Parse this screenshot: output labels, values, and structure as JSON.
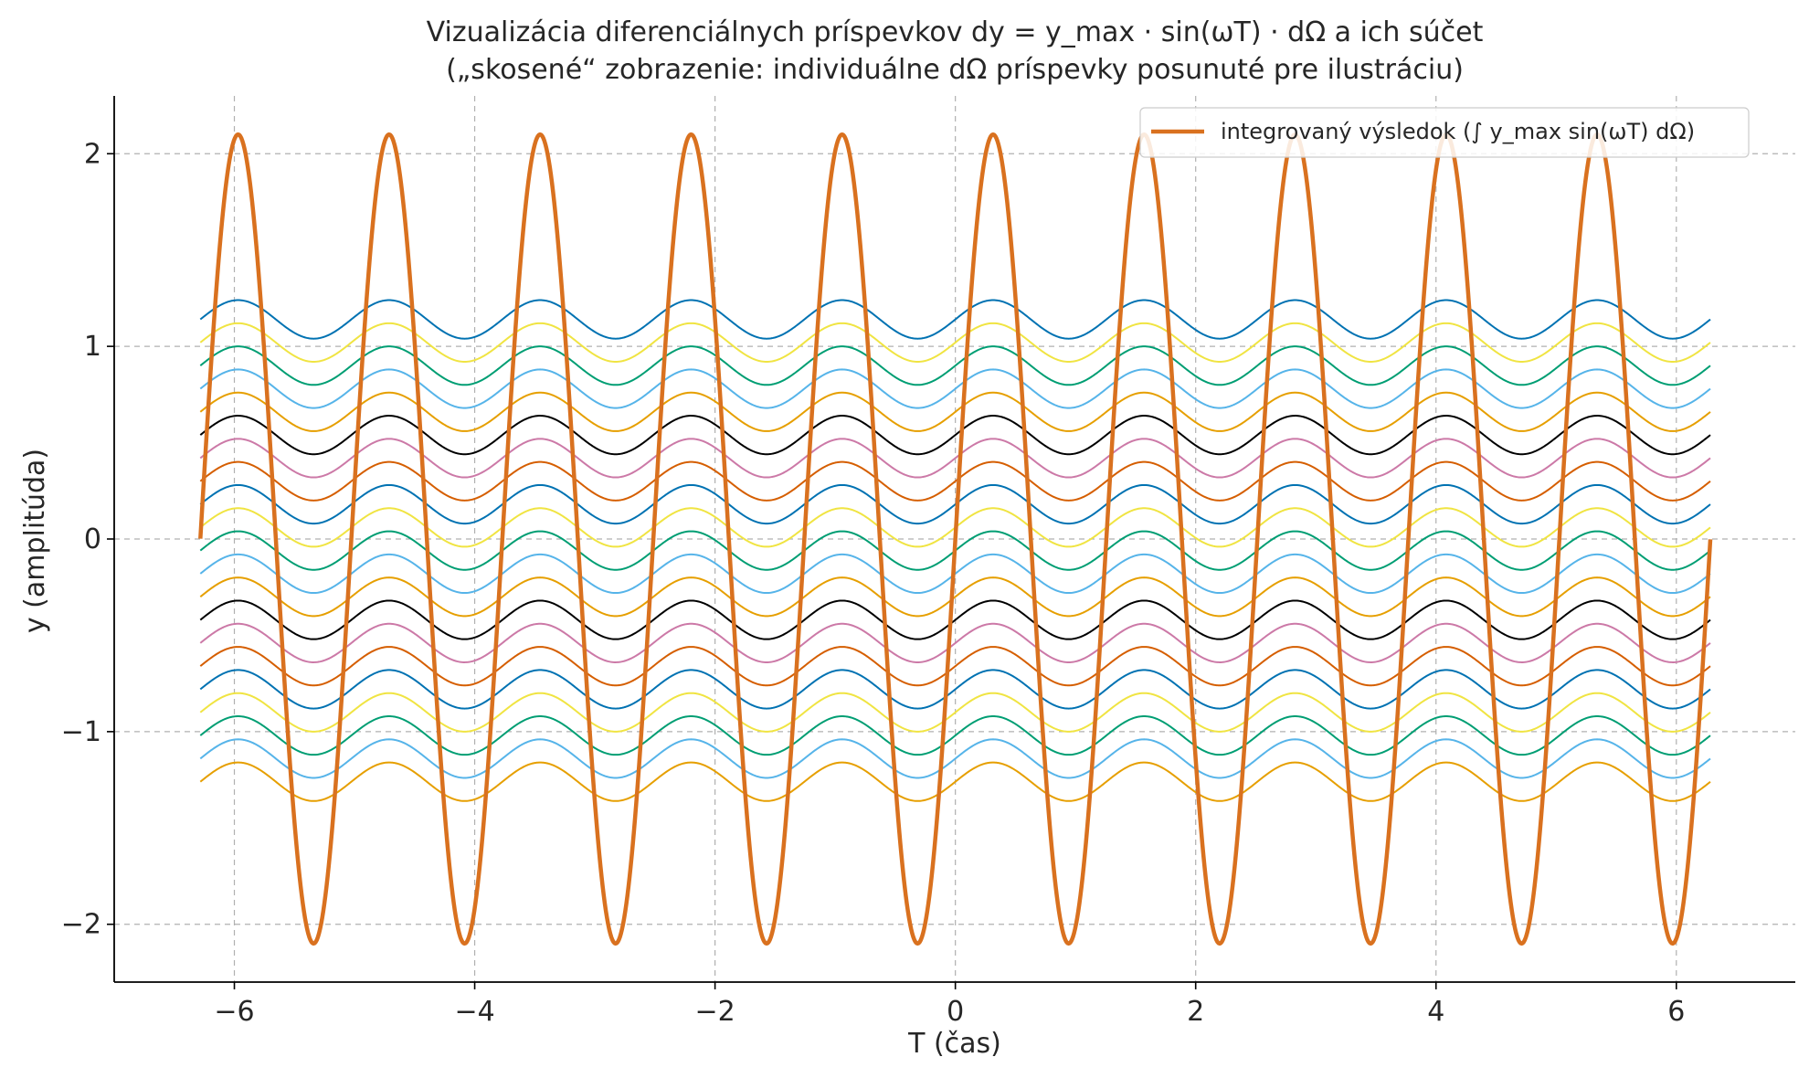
{
  "chart_data": {
    "type": "line",
    "title": [
      "Vizualizácia diferenciálnych príspevkov dy = y_max · sin(ωT) · dΩ a ich súčet",
      "(„skosené“ zobrazenie: individuálne dΩ príspevky posunuté pre ilustráciu)"
    ],
    "xlabel": "T (čas)",
    "ylabel": "y (amplitúda)",
    "xlim": [
      -7,
      6.99
    ],
    "ylim": [
      -2.3,
      2.3
    ],
    "xticks": [
      -6,
      -4,
      -2,
      0,
      2,
      4,
      6
    ],
    "xtick_labels": [
      "−6",
      "−4",
      "−2",
      "0",
      "2",
      "4",
      "6"
    ],
    "yticks": [
      -2,
      -1,
      0,
      1,
      2
    ],
    "ytick_labels": [
      "−2",
      "−1",
      "0",
      "1",
      "2"
    ],
    "grid": true,
    "legend_position": "top-right",
    "legend": [
      "integrovaný výsledok (∫ y_max sin(ωT) dΩ)"
    ],
    "t_range": [
      -6.283,
      6.283
    ],
    "main_series": {
      "name": "integrovaný výsledok (∫ y_max sin(ωT) dΩ)",
      "amplitude": 2.1,
      "omega": 5,
      "color": "#d9711f"
    },
    "contributions": {
      "count": 21,
      "amplitude": 0.1,
      "omega": 5,
      "offset_start": 1.14,
      "offset_step": -0.12,
      "colors": [
        "#0072b2",
        "#f0e442",
        "#009e73",
        "#56b4e9",
        "#e69f00",
        "#000000",
        "#cc79a7",
        "#d55e00"
      ]
    }
  }
}
